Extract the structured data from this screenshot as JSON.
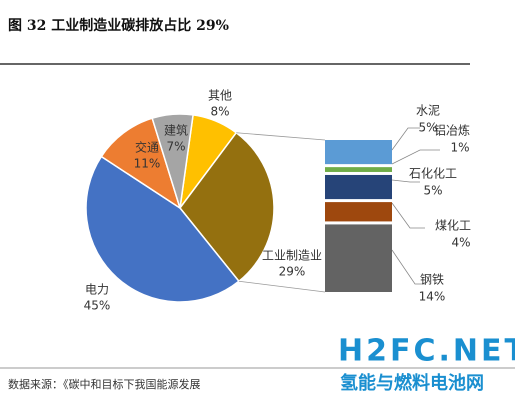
{
  "chart_data": {
    "type": "pie",
    "title": "图 32 工业制造业碳排放占比 29%",
    "categories": [
      "其他",
      "工业制造业",
      "电力",
      "交通",
      "建筑"
    ],
    "values": [
      8,
      29,
      45,
      11,
      7
    ],
    "value_labels": [
      "8%",
      "29%",
      "45%",
      "11%",
      "7%"
    ],
    "colors": [
      "#ffc000",
      "#94700f",
      "#4472c4",
      "#ed7d31",
      "#a5a5a5"
    ],
    "breakdown": {
      "type": "bar",
      "categories": [
        "水泥",
        "铝冶炼",
        "石化化工",
        "煤化工",
        "钢铁"
      ],
      "values": [
        5,
        1,
        5,
        4,
        14
      ],
      "value_labels": [
        "5%",
        "1%",
        "5%",
        "4%",
        "14%"
      ],
      "colors": [
        "#5b9bd5",
        "#70ad47",
        "#264478",
        "#9e480e",
        "#636363"
      ]
    }
  },
  "footer": {
    "source": "数据来源：《碳中和目标下我国能源发展",
    "watermark": "H2FC.NET",
    "watermark_sub": "氢能与燃料电池网"
  }
}
